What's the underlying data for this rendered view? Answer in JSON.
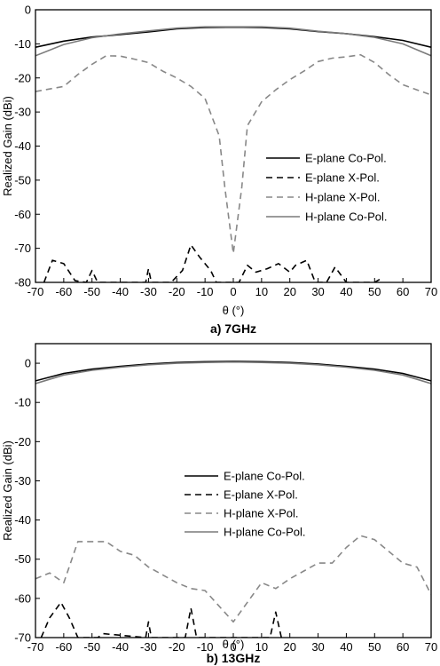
{
  "chart_data": [
    {
      "type": "line",
      "caption": "a) 7GHz",
      "xlabel": "θ (°)",
      "ylabel": "Realized Gain (dBi)",
      "xlim": [
        -70,
        70
      ],
      "ylim": [
        -80,
        0
      ],
      "xticks": [
        -70,
        -60,
        -50,
        -40,
        -30,
        -20,
        -10,
        0,
        10,
        20,
        30,
        40,
        50,
        60,
        70
      ],
      "yticks": [
        0,
        -10,
        -20,
        -30,
        -40,
        -50,
        -60,
        -70,
        -80
      ],
      "legend_position": "right",
      "series": [
        {
          "name": "E-plane Co-Pol.",
          "color": "#000000",
          "dash": "solid",
          "x": [
            -70,
            -60,
            -50,
            -40,
            -30,
            -20,
            -10,
            0,
            10,
            20,
            30,
            40,
            50,
            60,
            70
          ],
          "y": [
            -11,
            -9.2,
            -8,
            -7.3,
            -6.5,
            -5.6,
            -5.2,
            -5.1,
            -5.2,
            -5.6,
            -6.4,
            -7.0,
            -7.9,
            -9.0,
            -11
          ]
        },
        {
          "name": "E-plane X-Pol.",
          "color": "#000000",
          "dash": "dashed",
          "x": [
            -67,
            -64,
            -60,
            -56,
            -52,
            -50,
            -48,
            -31,
            -30,
            -29,
            -22,
            -18,
            -15,
            -12,
            -8,
            -6,
            2,
            5,
            8,
            12,
            16,
            20,
            22,
            26,
            29,
            33,
            36,
            40,
            50,
            52
          ],
          "y": [
            -80,
            -73.5,
            -74.5,
            -79.5,
            -80,
            -76.5,
            -80,
            -80,
            -76,
            -80,
            -80,
            -76.5,
            -69,
            -72.5,
            -76.5,
            -80,
            -80,
            -75,
            -77,
            -76,
            -74.5,
            -77,
            -75,
            -73.5,
            -80,
            -80,
            -75.5,
            -80,
            -80,
            -79
          ]
        },
        {
          "name": "H-plane X-Pol.",
          "color": "#888888",
          "dash": "dashed",
          "x": [
            -70,
            -60,
            -55,
            -50,
            -45,
            -40,
            -35,
            -30,
            -25,
            -20,
            -15,
            -10,
            -5,
            -3,
            0,
            3,
            5,
            10,
            15,
            20,
            25,
            30,
            35,
            40,
            45,
            50,
            55,
            60,
            65,
            70
          ],
          "y": [
            -24,
            -22.5,
            -19,
            -16,
            -13.5,
            -13.6,
            -14.5,
            -15.5,
            -18,
            -20,
            -22.5,
            -26,
            -37,
            -52,
            -71.5,
            -52,
            -34,
            -27,
            -23.5,
            -20.5,
            -18,
            -15.2,
            -14.2,
            -13.8,
            -13.2,
            -15.5,
            -19,
            -22,
            -23.5,
            -25
          ]
        },
        {
          "name": "H-plane Co-Pol.",
          "color": "#7a7a7a",
          "dash": "solid",
          "x": [
            -70,
            -60,
            -50,
            -40,
            -30,
            -20,
            -10,
            0,
            10,
            20,
            30,
            40,
            50,
            60,
            70
          ],
          "y": [
            -13.5,
            -10.2,
            -8.2,
            -7.1,
            -6.2,
            -5.4,
            -5.0,
            -5.0,
            -5.0,
            -5.4,
            -6.3,
            -7.0,
            -8.1,
            -10.0,
            -13.5
          ]
        }
      ]
    },
    {
      "type": "line",
      "caption": "b) 13GHz",
      "xlabel": "θ (°)",
      "ylabel": "Realized Gain (dBi)",
      "xlim": [
        -70,
        70
      ],
      "ylim": [
        -70,
        5
      ],
      "xticks": [
        -70,
        -60,
        -50,
        -40,
        -30,
        -20,
        -10,
        0,
        10,
        20,
        30,
        40,
        50,
        60,
        70
      ],
      "yticks": [
        0,
        -10,
        -20,
        -30,
        -40,
        -50,
        -60,
        -70
      ],
      "legend_position": "center",
      "series": [
        {
          "name": "E-plane Co-Pol.",
          "color": "#000000",
          "dash": "solid",
          "x": [
            -70,
            -60,
            -50,
            -40,
            -30,
            -20,
            -10,
            0,
            10,
            20,
            30,
            40,
            50,
            60,
            70
          ],
          "y": [
            -4.5,
            -2.6,
            -1.5,
            -0.8,
            -0.2,
            0.2,
            0.4,
            0.5,
            0.4,
            0.2,
            -0.2,
            -0.8,
            -1.5,
            -2.6,
            -4.5
          ]
        },
        {
          "name": "E-plane X-Pol.",
          "color": "#000000",
          "dash": "dashed",
          "x": [
            -68,
            -65,
            -61,
            -58,
            -55,
            -48,
            -46,
            -31,
            -30,
            -29,
            -17,
            -15,
            -13,
            13,
            15,
            17
          ],
          "y": [
            -70,
            -65,
            -61,
            -65,
            -70,
            -70,
            -69,
            -70,
            -66,
            -70,
            -70,
            -62.5,
            -70,
            -70,
            -63.5,
            -70
          ]
        },
        {
          "name": "H-plane X-Pol.",
          "color": "#888888",
          "dash": "dashed",
          "x": [
            -70,
            -65,
            -60,
            -55,
            -50,
            -45,
            -40,
            -35,
            -30,
            -25,
            -20,
            -15,
            -10,
            -5,
            0,
            5,
            10,
            15,
            20,
            25,
            30,
            35,
            40,
            45,
            50,
            55,
            60,
            65,
            70
          ],
          "y": [
            -55,
            -53.5,
            -56,
            -45.5,
            -45.5,
            -45.5,
            -48,
            -49,
            -52,
            -54,
            -56,
            -57.5,
            -58,
            -62,
            -66,
            -61,
            -56,
            -57.5,
            -55,
            -53,
            -51,
            -51,
            -47,
            -44,
            -45,
            -48,
            -51,
            -52,
            -59
          ]
        },
        {
          "name": "H-plane Co-Pol.",
          "color": "#7a7a7a",
          "dash": "solid",
          "x": [
            -70,
            -60,
            -50,
            -40,
            -30,
            -20,
            -10,
            0,
            10,
            20,
            30,
            40,
            50,
            60,
            70
          ],
          "y": [
            -5.2,
            -3.0,
            -1.8,
            -1.0,
            -0.4,
            0.0,
            0.2,
            0.3,
            0.2,
            0.0,
            -0.4,
            -1.0,
            -1.8,
            -3.0,
            -5.2
          ]
        }
      ]
    }
  ]
}
